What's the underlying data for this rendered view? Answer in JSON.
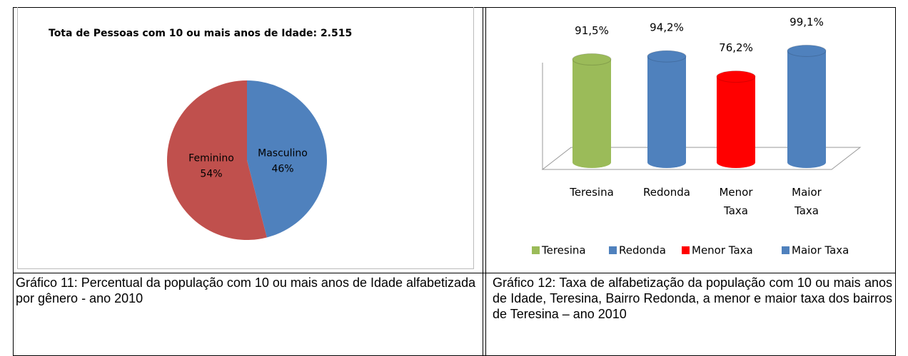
{
  "chart_data": [
    {
      "type": "pie",
      "title": "Tota de Pessoas com 10 ou mais anos de Idade: 2.515",
      "categories": [
        "Masculino",
        "Feminino"
      ],
      "values": [
        46,
        54
      ],
      "value_labels": [
        "46%",
        "54%"
      ],
      "colors": [
        "#4f81bd",
        "#c0504d"
      ]
    },
    {
      "type": "bar",
      "categories": [
        "Teresina",
        "Redonda",
        "Menor Taxa",
        "Maior Taxa"
      ],
      "values": [
        91.5,
        94.2,
        76.2,
        99.1
      ],
      "value_labels": [
        "91,5%",
        "94,2%",
        "76,2%",
        "99,1%"
      ],
      "colors": [
        "#9bbb59",
        "#4f81bd",
        "#ff0000",
        "#4f81bd"
      ],
      "legend": "bottom"
    }
  ],
  "captions": [
    "Gráfico 11: Percentual da população com 10 ou mais anos de Idade alfabetizada por gênero - ano 2010",
    "Gráfico 12: Taxa de alfabetização da população com 10 ou mais anos de Idade, Teresina, Bairro Redonda, a menor e maior taxa dos bairros de Teresina – ano 2010"
  ]
}
